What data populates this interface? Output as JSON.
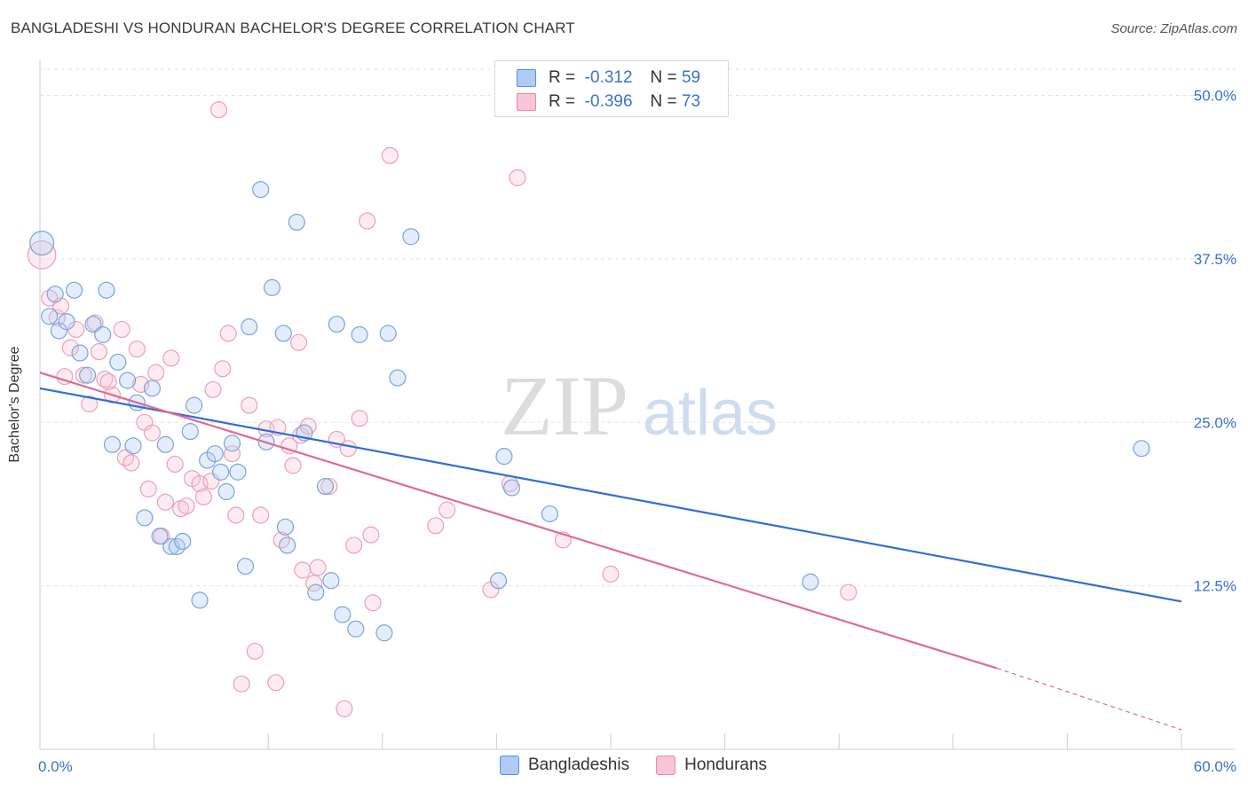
{
  "title": "BANGLADESHI VS HONDURAN BACHELOR'S DEGREE CORRELATION CHART",
  "source": "Source: ZipAtlas.com",
  "watermark": {
    "zip": "ZIP",
    "atlas": "atlas"
  },
  "legend": {
    "r_label": "R =",
    "n_label": "N =",
    "rows": [
      {
        "r": "-0.312",
        "n": "59",
        "color": "#aecbf4",
        "border": "#5b8fd6"
      },
      {
        "r": "-0.396",
        "n": "73",
        "color": "#f9c5d4",
        "border": "#e58aa8"
      }
    ]
  },
  "colors": {
    "blue_fill": "rgba(174,203,244,0.35)",
    "blue_stroke": "#7aa4dc",
    "blue_line": "#2f6fd0",
    "pink_fill": "rgba(249,197,212,0.35)",
    "pink_stroke": "#eaa0b9",
    "pink_line": "#e06a96",
    "axis_text": "#3a72c9",
    "grid": "#e3e3e3"
  },
  "chart_data": {
    "type": "scatter",
    "title": "BANGLADESHI VS HONDURAN BACHELOR'S DEGREE CORRELATION CHART",
    "xlabel": "",
    "ylabel": "Bachelor's Degree",
    "xlim": [
      0,
      60
    ],
    "ylim": [
      0,
      52
    ],
    "x_tick_labels": [
      "0.0%",
      "60.0%"
    ],
    "y_ticks": [
      12.5,
      25.0,
      37.5,
      50.0
    ],
    "y_tick_labels": [
      "12.5%",
      "25.0%",
      "37.5%",
      "50.0%"
    ],
    "grid": "horizontal dashed",
    "legend_position": "bottom-center",
    "series": [
      {
        "name": "Bangladeshis",
        "trend": {
          "x": [
            0,
            60
          ],
          "y": [
            27.6,
            11.3
          ]
        },
        "points": [
          [
            0.1,
            38.7,
            12
          ],
          [
            0.5,
            33.1,
            8
          ],
          [
            0.8,
            34.8,
            8
          ],
          [
            1.0,
            32.0,
            8
          ],
          [
            1.4,
            32.7,
            8
          ],
          [
            1.8,
            35.1,
            8
          ],
          [
            2.1,
            30.3,
            8
          ],
          [
            2.5,
            28.6,
            8
          ],
          [
            2.8,
            32.5,
            8
          ],
          [
            3.3,
            31.7,
            8
          ],
          [
            3.5,
            35.1,
            8
          ],
          [
            3.8,
            23.3,
            8
          ],
          [
            4.1,
            29.6,
            8
          ],
          [
            4.6,
            28.2,
            8
          ],
          [
            4.9,
            23.2,
            8
          ],
          [
            5.1,
            26.5,
            8
          ],
          [
            5.5,
            17.7,
            8
          ],
          [
            5.9,
            27.6,
            8
          ],
          [
            6.3,
            16.3,
            8
          ],
          [
            6.6,
            23.3,
            8
          ],
          [
            6.9,
            15.5,
            8
          ],
          [
            7.2,
            15.5,
            8
          ],
          [
            7.5,
            15.9,
            8
          ],
          [
            7.9,
            24.3,
            8
          ],
          [
            8.1,
            26.3,
            8
          ],
          [
            8.4,
            11.4,
            8
          ],
          [
            8.8,
            22.1,
            8
          ],
          [
            9.2,
            22.6,
            8
          ],
          [
            9.5,
            21.2,
            8
          ],
          [
            9.8,
            19.7,
            8
          ],
          [
            10.1,
            23.4,
            8
          ],
          [
            10.4,
            21.2,
            8
          ],
          [
            10.8,
            14.0,
            8
          ],
          [
            11.0,
            32.3,
            8
          ],
          [
            11.6,
            42.8,
            8
          ],
          [
            11.9,
            23.5,
            8
          ],
          [
            12.2,
            35.3,
            8
          ],
          [
            12.9,
            17.0,
            8
          ],
          [
            13.0,
            15.6,
            8
          ],
          [
            12.8,
            31.8,
            8
          ],
          [
            13.5,
            40.3,
            8
          ],
          [
            13.9,
            24.2,
            8
          ],
          [
            14.5,
            12.0,
            8
          ],
          [
            15.0,
            20.1,
            8
          ],
          [
            15.3,
            12.9,
            8
          ],
          [
            15.6,
            32.5,
            8
          ],
          [
            15.9,
            10.3,
            8
          ],
          [
            16.6,
            9.2,
            8
          ],
          [
            16.8,
            31.7,
            8
          ],
          [
            18.1,
            8.9,
            8
          ],
          [
            18.3,
            31.8,
            8
          ],
          [
            18.8,
            28.4,
            8
          ],
          [
            19.5,
            39.2,
            8
          ],
          [
            24.4,
            22.4,
            8
          ],
          [
            24.1,
            12.9,
            8
          ],
          [
            24.8,
            20.0,
            8
          ],
          [
            26.8,
            18.0,
            8
          ],
          [
            40.5,
            12.8,
            8
          ],
          [
            57.9,
            23.0,
            8
          ]
        ]
      },
      {
        "name": "Hondurans",
        "trend": {
          "x": [
            0,
            50.3
          ],
          "y": [
            28.8,
            6.2
          ]
        },
        "trend_dashed": {
          "x": [
            50.3,
            60
          ],
          "y": [
            6.2,
            1.5
          ]
        },
        "points": [
          [
            0.1,
            37.8,
            14
          ],
          [
            0.5,
            34.5,
            8
          ],
          [
            0.9,
            33.0,
            8
          ],
          [
            1.1,
            33.9,
            8
          ],
          [
            1.3,
            28.5,
            8
          ],
          [
            1.6,
            30.7,
            8
          ],
          [
            1.9,
            32.1,
            8
          ],
          [
            2.3,
            28.6,
            8
          ],
          [
            2.6,
            26.4,
            8
          ],
          [
            2.9,
            32.6,
            8
          ],
          [
            3.1,
            30.4,
            8
          ],
          [
            3.4,
            28.3,
            8
          ],
          [
            3.6,
            28.1,
            8
          ],
          [
            3.8,
            27.1,
            8
          ],
          [
            4.3,
            32.1,
            8
          ],
          [
            4.5,
            22.3,
            8
          ],
          [
            4.8,
            21.9,
            8
          ],
          [
            5.1,
            30.6,
            8
          ],
          [
            5.3,
            27.9,
            8
          ],
          [
            5.5,
            25.0,
            8
          ],
          [
            5.7,
            19.9,
            8
          ],
          [
            5.9,
            24.2,
            8
          ],
          [
            6.1,
            28.8,
            8
          ],
          [
            6.4,
            16.3,
            8
          ],
          [
            6.6,
            18.9,
            8
          ],
          [
            6.9,
            29.9,
            8
          ],
          [
            7.1,
            21.8,
            8
          ],
          [
            7.4,
            18.4,
            8
          ],
          [
            7.7,
            18.6,
            8
          ],
          [
            8.0,
            20.7,
            8
          ],
          [
            8.4,
            20.3,
            8
          ],
          [
            8.6,
            19.3,
            8
          ],
          [
            9.0,
            20.5,
            8
          ],
          [
            9.1,
            27.5,
            8
          ],
          [
            9.6,
            29.1,
            8
          ],
          [
            9.9,
            31.8,
            8
          ],
          [
            10.1,
            22.6,
            8
          ],
          [
            9.4,
            48.9,
            8
          ],
          [
            10.3,
            17.9,
            8
          ],
          [
            10.6,
            5.0,
            8
          ],
          [
            11.0,
            26.3,
            8
          ],
          [
            11.3,
            7.5,
            8
          ],
          [
            11.6,
            17.9,
            8
          ],
          [
            11.9,
            24.5,
            8
          ],
          [
            12.4,
            5.1,
            8
          ],
          [
            12.5,
            24.6,
            8
          ],
          [
            12.7,
            16.0,
            8
          ],
          [
            13.1,
            23.2,
            8
          ],
          [
            13.3,
            21.7,
            8
          ],
          [
            13.6,
            31.1,
            8
          ],
          [
            13.7,
            24.0,
            8
          ],
          [
            14.1,
            24.7,
            8
          ],
          [
            14.4,
            12.7,
            8
          ],
          [
            14.6,
            13.9,
            8
          ],
          [
            15.2,
            20.1,
            8
          ],
          [
            15.6,
            23.7,
            8
          ],
          [
            16.0,
            3.1,
            8
          ],
          [
            16.2,
            23.0,
            8
          ],
          [
            16.5,
            15.6,
            8
          ],
          [
            16.8,
            25.3,
            8
          ],
          [
            17.2,
            40.4,
            8
          ],
          [
            17.5,
            11.2,
            8
          ],
          [
            17.4,
            16.4,
            8
          ],
          [
            18.4,
            45.4,
            8
          ],
          [
            20.8,
            17.1,
            8
          ],
          [
            21.4,
            18.3,
            8
          ],
          [
            23.7,
            12.2,
            8
          ],
          [
            24.7,
            20.3,
            8
          ],
          [
            25.1,
            43.7,
            8
          ],
          [
            27.5,
            16.0,
            8
          ],
          [
            30.0,
            13.4,
            8
          ],
          [
            42.5,
            12.0,
            8
          ],
          [
            13.8,
            13.7,
            8
          ]
        ]
      }
    ]
  }
}
